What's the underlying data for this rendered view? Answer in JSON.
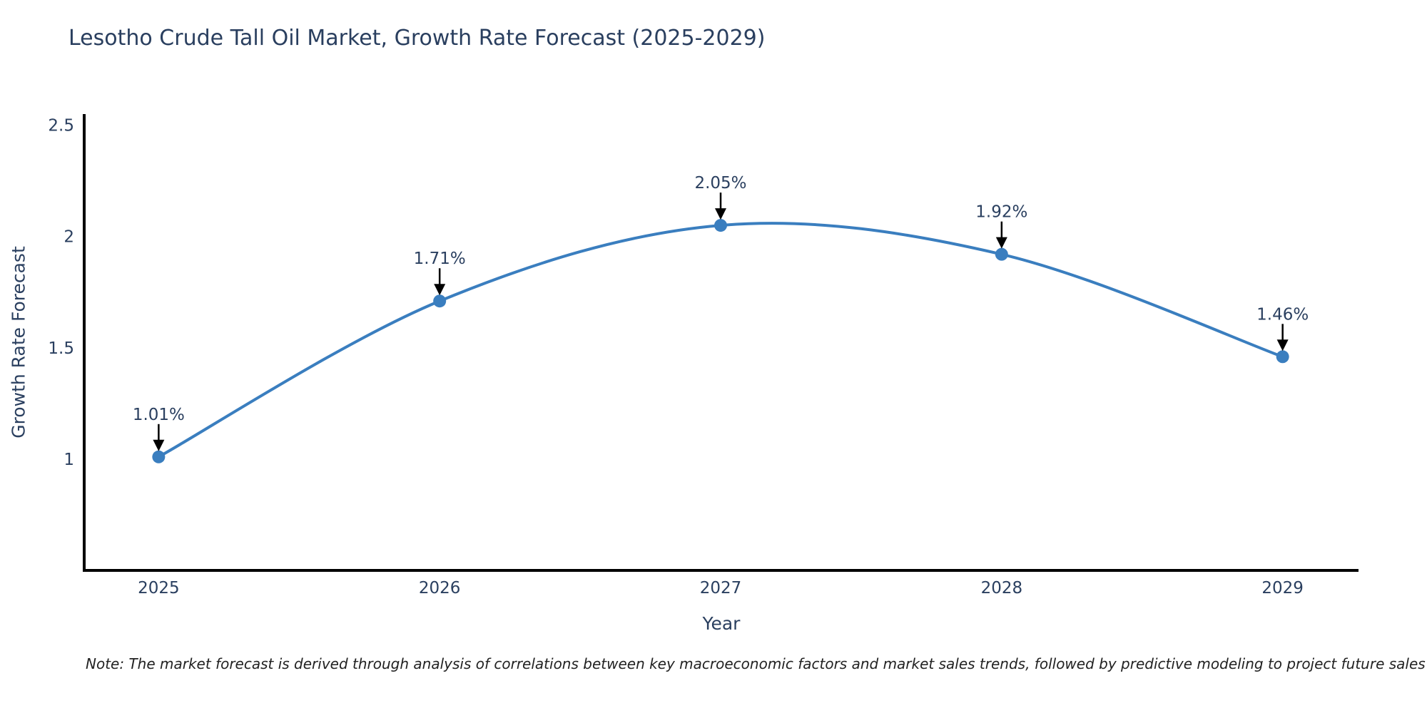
{
  "chart_data": {
    "type": "line",
    "title": "Lesotho Crude Tall Oil Market, Growth Rate Forecast (2025-2029)",
    "xlabel": "Year",
    "ylabel": "Growth Rate Forecast",
    "x": [
      2025,
      2026,
      2027,
      2028,
      2029
    ],
    "series": [
      {
        "name": "Growth Rate Forecast",
        "values": [
          1.01,
          1.71,
          2.05,
          1.92,
          1.46
        ]
      }
    ],
    "annotations": [
      "1.01%",
      "1.71%",
      "2.05%",
      "1.92%",
      "1.46%"
    ],
    "yticks": [
      1,
      1.5,
      2,
      2.5
    ],
    "ytick_labels": [
      "1",
      "1.5",
      "2",
      "2.5"
    ],
    "xtick_labels": [
      "2025",
      "2026",
      "2027",
      "2028",
      "2029"
    ],
    "xlim": [
      2024.735,
      2029.27
    ],
    "ylim": [
      0.5,
      2.55
    ],
    "line_shape": "spline",
    "grid": false,
    "legend": "none",
    "colors": {
      "line": "#3a7ebf",
      "marker": "#3a7ebf",
      "axis": "#000000",
      "arrow": "#000000",
      "tick_text": "#2a3f5f",
      "annotation_text": "#2a3f5f"
    }
  },
  "footnote": "Note: The market forecast is derived through analysis of correlations between key macroeconomic factors and market sales trends, followed by predictive modeling to project future sales"
}
